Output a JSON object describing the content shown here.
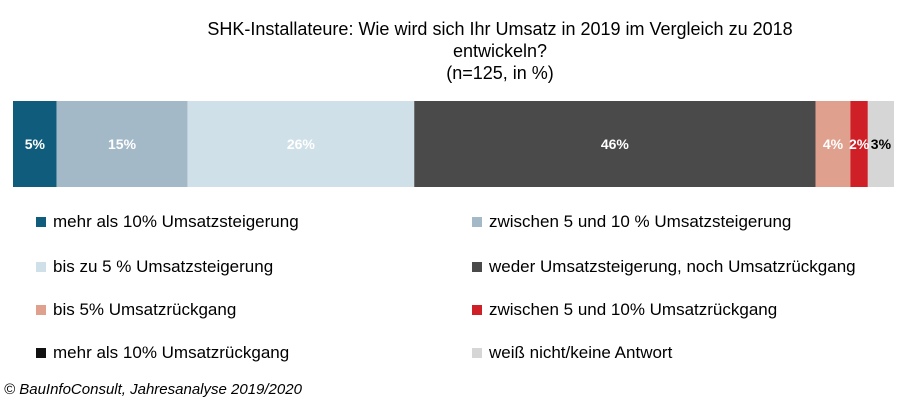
{
  "chart_data": {
    "type": "bar",
    "orientation": "horizontal-stacked-100",
    "title": "SHK-Installateure:  Wie wird sich Ihr Umsatz  in 2019 im Vergleich zu 2018",
    "title_line2": "entwickeln?",
    "subtitle": "(n=125, in %)",
    "series": [
      {
        "name": "mehr als 10% Umsatzsteigerung",
        "value": 5,
        "label": "5%",
        "color": "#0f5c7c",
        "label_color": "#ffffff"
      },
      {
        "name": "zwischen 5 und 10 % Umsatzsteigerung",
        "value": 15,
        "label": "15%",
        "color": "#a3b9c8",
        "label_color": "#ffffff"
      },
      {
        "name": "bis zu 5 % Umsatzsteigerung",
        "value": 26,
        "label": "26%",
        "color": "#cfe0e8",
        "label_color": "#ffffff"
      },
      {
        "name": "weder Umsatzsteigerung, noch Umsatzrückgang",
        "value": 46,
        "label": "46%",
        "color": "#4a4a4a",
        "label_color": "#ffffff"
      },
      {
        "name": "bis 5% Umsatzrückgang",
        "value": 4,
        "label": "4%",
        "color": "#e0a08e",
        "label_color": "#ffffff"
      },
      {
        "name": "zwischen 5 und 10% Umsatzrückgang",
        "value": 2,
        "label": "2%",
        "color": "#cf2027",
        "label_color": "#ffffff"
      },
      {
        "name": "mehr als 10% Umsatzrückgang",
        "value": 0,
        "label": "",
        "color": "#111111",
        "label_color": "#ffffff"
      },
      {
        "name": "weiß nicht/keine Antwort",
        "value": 3,
        "label": "3%",
        "color": "#d6d6d6",
        "label_color": "#000000"
      }
    ],
    "legend_placement": "bottom, two columns",
    "grid": false
  },
  "footer": "© BauInfoConsult, Jahresanalyse 2019/2020"
}
